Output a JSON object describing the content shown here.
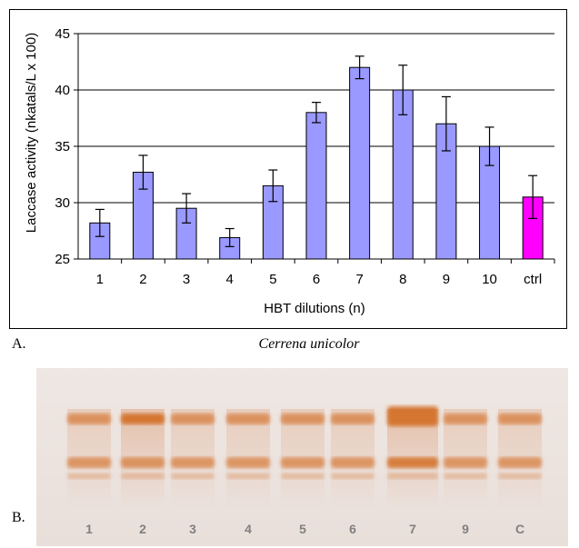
{
  "chart_data": {
    "type": "bar",
    "categories": [
      "1",
      "2",
      "3",
      "4",
      "5",
      "6",
      "7",
      "8",
      "9",
      "10",
      "ctrl"
    ],
    "values": [
      28.2,
      32.7,
      29.5,
      26.9,
      31.5,
      38.0,
      42.0,
      40.0,
      37.0,
      35.0,
      30.5
    ],
    "errors": [
      1.2,
      1.5,
      1.3,
      0.8,
      1.4,
      0.9,
      1.0,
      2.2,
      2.4,
      1.7,
      1.9
    ],
    "xlabel": "HBT dilutions (n)",
    "ylabel": "Laccase activity (nkatals/L x 100)",
    "ylim": [
      25,
      45
    ],
    "yticks": [
      25,
      30,
      35,
      40,
      45
    ],
    "grid": true,
    "bar_color": "#9999FF",
    "highlight_color": "#FF00FF",
    "highlight_category": "ctrl"
  },
  "panel_a_label": "A.",
  "panel_b_label": "B.",
  "species_title": "Cerrena unicolor",
  "gel": {
    "lanes": [
      "1",
      "2",
      "3",
      "4",
      "5",
      "6",
      "7",
      "9",
      "C"
    ],
    "band_color": "#D2691E",
    "label_color": "#808080"
  }
}
